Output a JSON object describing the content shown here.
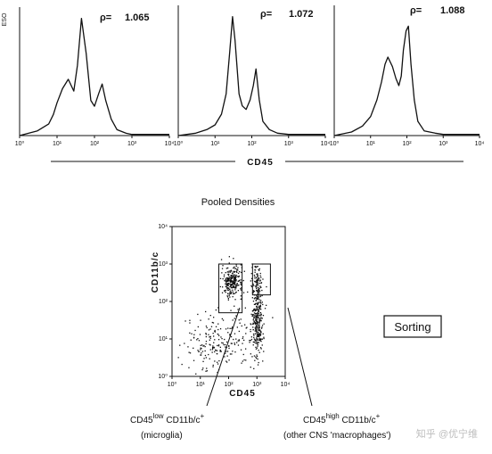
{
  "figure": {
    "histogram_panels": [
      {
        "rho_label": "ρ=",
        "rho_value": "1.065"
      },
      {
        "rho_label": "ρ=",
        "rho_value": "1.072"
      },
      {
        "rho_label": "ρ=",
        "rho_value": "1.088"
      }
    ],
    "histogram_y_label": "ESO",
    "histogram_xlabel": "CD45",
    "scatter_title": "Pooled Densities",
    "scatter_xlabel": "CD45",
    "scatter_ylabel": "CD11b/c",
    "scatter_y_ticks": [
      "10⁰",
      "10¹",
      "10²",
      "10³",
      "10⁴"
    ],
    "sorting_label": "Sorting",
    "annotation_left": {
      "line1_a": "CD45",
      "line1_sup1": "low",
      "line1_b": " CD11b/c",
      "line1_sup2": "+",
      "line2": "(microglia)"
    },
    "annotation_right": {
      "line1_a": "CD45",
      "line1_sup1": "high",
      "line1_b": " CD11b/c",
      "line1_sup2": "+",
      "line2": "(other CNS 'macrophages')"
    },
    "watermark": "知乎 @优宁维"
  },
  "chart_data": [
    {
      "type": "line",
      "xscale": "log",
      "x_ticks": [
        "10⁰",
        "10¹",
        "10²",
        "10³",
        "10⁴"
      ],
      "xlim": [
        1,
        10000
      ],
      "xlabel": "CD45",
      "annotation": "ρ= 1.065",
      "series": [
        {
          "x": [
            1,
            3,
            6,
            8,
            10,
            14,
            20,
            28,
            35,
            45,
            60,
            80,
            100,
            130,
            160,
            200,
            280,
            400,
            700,
            1000,
            3000,
            10000
          ],
          "values": [
            0,
            4,
            10,
            18,
            28,
            40,
            48,
            38,
            60,
            100,
            70,
            30,
            25,
            36,
            44,
            30,
            14,
            5,
            2,
            1,
            1,
            1
          ]
        }
      ]
    },
    {
      "type": "line",
      "xscale": "log",
      "x_ticks": [
        "10⁰",
        "10¹",
        "10²",
        "10³",
        "10⁴"
      ],
      "xlim": [
        1,
        10000
      ],
      "xlabel": "CD45",
      "annotation": "ρ= 1.072",
      "series": [
        {
          "x": [
            1,
            3,
            6,
            10,
            15,
            20,
            25,
            30,
            35,
            45,
            55,
            70,
            90,
            110,
            130,
            160,
            200,
            300,
            500,
            1000,
            10000
          ],
          "values": [
            0,
            2,
            5,
            9,
            18,
            35,
            70,
            100,
            80,
            35,
            25,
            22,
            30,
            42,
            56,
            30,
            12,
            5,
            2,
            1,
            1
          ]
        }
      ]
    },
    {
      "type": "line",
      "xscale": "log",
      "x_ticks": [
        "10⁰",
        "10¹",
        "10²",
        "10³",
        "10⁴"
      ],
      "xlim": [
        1,
        10000
      ],
      "xlabel": "CD45",
      "annotation": "ρ= 1.088",
      "series": [
        {
          "x": [
            1,
            3,
            6,
            10,
            15,
            20,
            25,
            30,
            40,
            50,
            60,
            70,
            80,
            95,
            110,
            130,
            160,
            200,
            300,
            600,
            1000,
            10000
          ],
          "values": [
            0,
            3,
            8,
            16,
            30,
            45,
            60,
            66,
            58,
            48,
            42,
            50,
            72,
            88,
            92,
            60,
            30,
            12,
            4,
            2,
            1,
            1
          ]
        }
      ]
    },
    {
      "type": "scatter",
      "title": "Pooled Densities",
      "xscale": "log",
      "yscale": "log",
      "xlabel": "CD45",
      "ylabel": "CD11b/c",
      "x_ticks": [
        "10⁰",
        "10¹",
        "10²",
        "10³",
        "10⁴"
      ],
      "y_ticks": [
        "10⁰",
        "10¹",
        "10²",
        "10³",
        "10⁴"
      ],
      "xlim": [
        1,
        10000
      ],
      "ylim": [
        1,
        10000
      ],
      "gates": [
        {
          "name": "microglia",
          "x": [
            45,
            300
          ],
          "y": [
            50,
            1000
          ]
        },
        {
          "name": "macrophages",
          "x": [
            700,
            3000
          ],
          "y": [
            150,
            1000
          ]
        }
      ]
    }
  ]
}
